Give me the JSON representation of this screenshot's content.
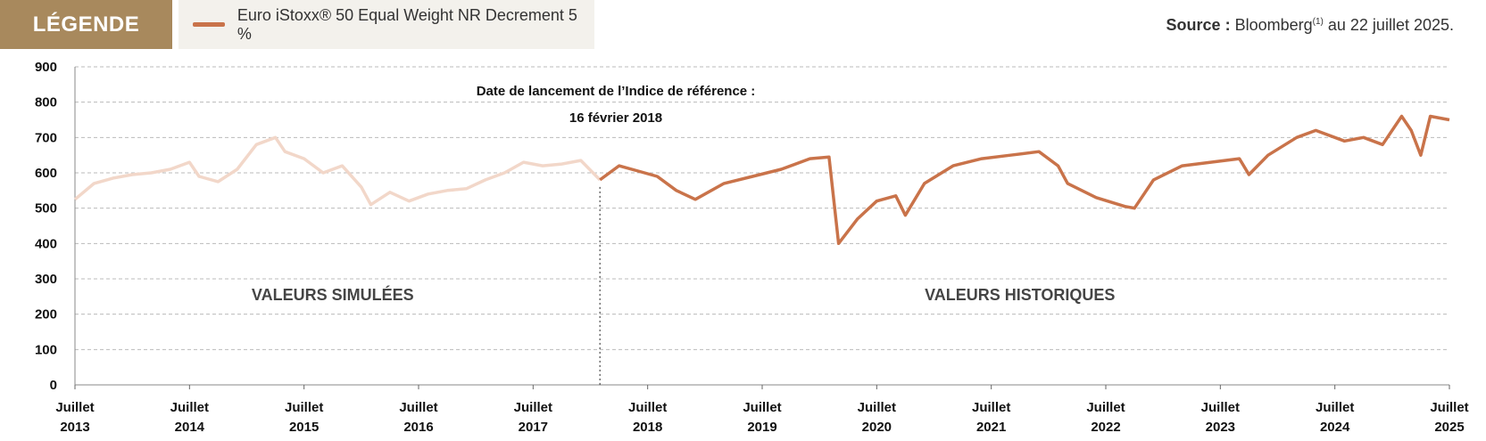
{
  "legend": {
    "tag": "LÉGENDE",
    "series_label": "Euro iStoxx® 50 Equal Weight NR Decrement 5 %"
  },
  "source": {
    "label": "Source :",
    "text": "Bloomberg",
    "superscript": "(1)",
    "suffix": "au 22 juillet 2025."
  },
  "chart_data": {
    "type": "line",
    "title": "",
    "ylim": [
      0,
      900
    ],
    "yticks": [
      0,
      100,
      200,
      300,
      400,
      500,
      600,
      700,
      800,
      900
    ],
    "xlim": [
      "2013-07",
      "2025-07"
    ],
    "xticks": [
      {
        "year": "2013",
        "label": "Juillet"
      },
      {
        "year": "2014",
        "label": "Juillet"
      },
      {
        "year": "2015",
        "label": "Juillet"
      },
      {
        "year": "2016",
        "label": "Juillet"
      },
      {
        "year": "2017",
        "label": "Juillet"
      },
      {
        "year": "2018",
        "label": "Juillet"
      },
      {
        "year": "2019",
        "label": "Juillet"
      },
      {
        "year": "2020",
        "label": "Juillet"
      },
      {
        "year": "2021",
        "label": "Juillet"
      },
      {
        "year": "2022",
        "label": "Juillet"
      },
      {
        "year": "2023",
        "label": "Juillet"
      },
      {
        "year": "2024",
        "label": "Juillet"
      },
      {
        "year": "2025",
        "label": "Juillet"
      }
    ],
    "grid": true,
    "launch_date": "2018-02",
    "annotation_line1": "Date de lancement de l’Indice de référence :",
    "annotation_line2": "16 février 2018",
    "region_simulated": "VALEURS SIMULÉES",
    "region_historical": "VALEURS HISTORIQUES",
    "colors": {
      "simulated": "#f2d7c9",
      "historical": "#c9734a",
      "grid": "#bbbbbb"
    },
    "series": [
      {
        "name": "Euro iStoxx® 50 Equal Weight NR Decrement 5 %",
        "x": [
          "2013-07",
          "2013-09",
          "2013-11",
          "2014-01",
          "2014-03",
          "2014-05",
          "2014-07",
          "2014-08",
          "2014-10",
          "2014-12",
          "2015-02",
          "2015-04",
          "2015-05",
          "2015-07",
          "2015-09",
          "2015-11",
          "2016-01",
          "2016-02",
          "2016-04",
          "2016-06",
          "2016-08",
          "2016-10",
          "2016-12",
          "2017-02",
          "2017-04",
          "2017-06",
          "2017-08",
          "2017-10",
          "2017-12",
          "2018-02",
          "2018-04",
          "2018-06",
          "2018-08",
          "2018-10",
          "2018-12",
          "2019-03",
          "2019-06",
          "2019-09",
          "2019-12",
          "2020-02",
          "2020-03",
          "2020-05",
          "2020-07",
          "2020-09",
          "2020-10",
          "2020-12",
          "2021-03",
          "2021-06",
          "2021-09",
          "2021-12",
          "2022-02",
          "2022-03",
          "2022-06",
          "2022-09",
          "2022-10",
          "2022-12",
          "2023-03",
          "2023-06",
          "2023-09",
          "2023-10",
          "2023-12",
          "2024-03",
          "2024-05",
          "2024-08",
          "2024-10",
          "2024-12",
          "2025-02",
          "2025-03",
          "2025-04",
          "2025-05",
          "2025-07"
        ],
        "y": [
          525,
          570,
          585,
          595,
          600,
          610,
          630,
          590,
          575,
          610,
          680,
          700,
          660,
          640,
          600,
          620,
          560,
          510,
          545,
          520,
          540,
          550,
          555,
          580,
          600,
          630,
          620,
          625,
          635,
          580,
          620,
          605,
          590,
          550,
          525,
          570,
          590,
          610,
          640,
          645,
          400,
          470,
          520,
          535,
          480,
          570,
          620,
          640,
          650,
          660,
          620,
          570,
          530,
          505,
          500,
          580,
          620,
          630,
          640,
          595,
          650,
          700,
          720,
          690,
          700,
          680,
          760,
          720,
          650,
          760,
          750
        ]
      }
    ]
  }
}
